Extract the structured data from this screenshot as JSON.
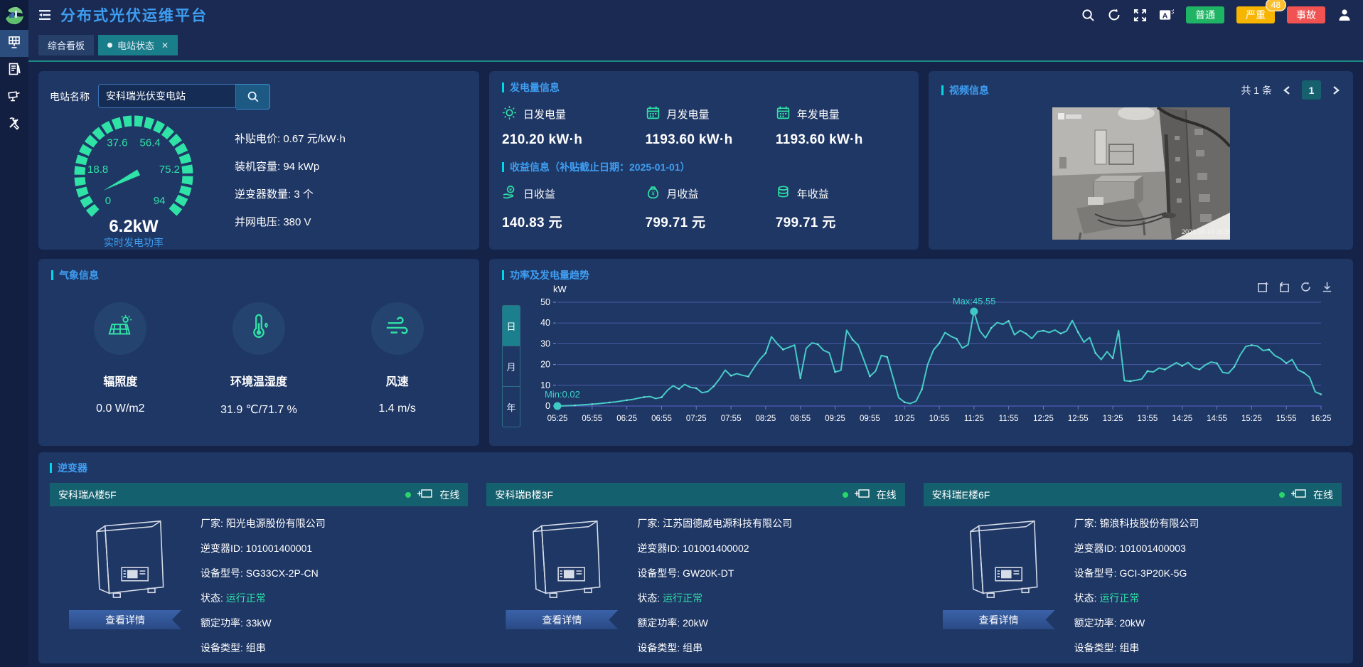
{
  "colors": {
    "accent_blue": "#3f9ef2",
    "accent_cyan": "#00d8e8",
    "green": "#2fe3a6",
    "chart_line": "#45cbc7",
    "teal_tab": "#1a7e8a"
  },
  "header": {
    "title": "分布式光伏运维平台",
    "alarm_buttons": [
      {
        "label": "普通",
        "bg": "#1eb463"
      },
      {
        "label": "严重",
        "bg": "#f7b500",
        "count": "48"
      },
      {
        "label": "事故",
        "bg": "#f15353"
      }
    ]
  },
  "tabs": [
    {
      "label": "综合看板",
      "active": false,
      "closable": false
    },
    {
      "label": "电站状态",
      "active": true,
      "closable": true
    }
  ],
  "sidebar": {
    "items": [
      {
        "icon": "solar-panel",
        "active": true
      },
      {
        "icon": "report",
        "active": false
      },
      {
        "icon": "camera",
        "active": false
      },
      {
        "icon": "tools",
        "active": false
      }
    ]
  },
  "station": {
    "search_label": "电站名称",
    "search_value": "安科瑞光伏变电站",
    "gauge": {
      "value": 6.2,
      "min": 0,
      "max": 94,
      "value_text": "6.2kW",
      "caption": "实时发电功率",
      "tick_labels": [
        "0",
        "18.8",
        "37.6",
        "56.4",
        "75.2",
        "94"
      ]
    },
    "stats": [
      {
        "label": "补贴电价",
        "value": "0.67 元/kW·h"
      },
      {
        "label": "装机容量",
        "value": "94 kWp"
      },
      {
        "label": "逆变器数量",
        "value": "3 个"
      },
      {
        "label": "并网电压",
        "value": "380 V"
      }
    ]
  },
  "generation": {
    "title": "发电量信息",
    "items": [
      {
        "icon": "sun",
        "label": "日发电量",
        "value": "210.20 kW·h"
      },
      {
        "icon": "calendar",
        "label": "月发电量",
        "value": "1193.60 kW·h"
      },
      {
        "icon": "calendar",
        "label": "年发电量",
        "value": "1193.60 kW·h"
      }
    ],
    "income_title": "收益信息（补贴截止日期：2025-01-01）",
    "income_items": [
      {
        "icon": "coin-hand",
        "label": "日收益",
        "value": "140.83 元"
      },
      {
        "icon": "money-bag",
        "label": "月收益",
        "value": "799.71 元"
      },
      {
        "icon": "coins",
        "label": "年收益",
        "value": "799.71 元"
      }
    ]
  },
  "video": {
    "title": "视频信息",
    "total_text": "共 1 条",
    "page": "1",
    "camera_timestamp": "2021-06-24 16:59:10"
  },
  "weather": {
    "title": "气象信息",
    "items": [
      {
        "icon": "irradiance",
        "label": "辐照度",
        "value": "0.0 W/m2"
      },
      {
        "icon": "thermo",
        "label": "环境温湿度",
        "value": "31.9 ℃/71.7 %"
      },
      {
        "icon": "wind",
        "label": "风速",
        "value": "1.4 m/s"
      }
    ]
  },
  "chart": {
    "title": "功率及发电量趋势",
    "tabs": [
      {
        "label": "日",
        "active": true
      },
      {
        "label": "月",
        "active": false
      },
      {
        "label": "年",
        "active": false
      }
    ],
    "max_label": "Max:45.55",
    "min_label": "Min:0.02"
  },
  "chart_data": {
    "type": "line",
    "title": "功率及发电量趋势",
    "ylabel": "kW",
    "ylim": [
      0,
      50
    ],
    "yticks": [
      0,
      10,
      20,
      30,
      40,
      50
    ],
    "x_start": "05:25",
    "x_end": "16:25",
    "x_interval_minutes": 5,
    "x_tick_labels": [
      "05:25",
      "05:55",
      "06:25",
      "06:55",
      "07:25",
      "07:55",
      "08:25",
      "08:55",
      "09:25",
      "09:55",
      "10:25",
      "10:55",
      "11:25",
      "11:55",
      "12:25",
      "12:55",
      "13:25",
      "13:55",
      "14:25",
      "14:55",
      "15:25",
      "15:55",
      "16:25"
    ],
    "series": [
      {
        "name": "功率",
        "values": [
          0.02,
          0.1,
          0.2,
          0.3,
          0.5,
          0.7,
          0.9,
          1.1,
          1.4,
          1.7,
          2.0,
          2.4,
          2.8,
          3.2,
          3.8,
          4.3,
          4.6,
          3.6,
          4.2,
          7.5,
          9.8,
          8.2,
          10.4,
          9.0,
          8.6,
          6.4,
          7.0,
          9.5,
          13.0,
          17.3,
          14.6,
          15.6,
          14.8,
          14.2,
          18.5,
          22.5,
          25.5,
          33.4,
          30.0,
          27.2,
          28.3,
          29.4,
          13.4,
          27.8,
          30.4,
          29.8,
          26.8,
          25.6,
          16.4,
          17.2,
          36.5,
          32.0,
          29.3,
          22.0,
          14.3,
          16.8,
          24.4,
          23.6,
          13.8,
          4.0,
          1.8,
          1.2,
          2.4,
          8.0,
          20.0,
          27.0,
          30.2,
          35.4,
          33.6,
          32.4,
          27.9,
          29.6,
          45.55,
          36.2,
          32.8,
          37.6,
          40.2,
          39.4,
          41.0,
          34.3,
          36.4,
          34.9,
          32.5,
          35.8,
          36.3,
          35.4,
          36.6,
          34.9,
          36.1,
          41.2,
          35.5,
          30.8,
          33.0,
          25.5,
          22.4,
          26.2,
          23.0,
          36.4,
          12.2,
          12.0,
          12.4,
          13.0,
          16.8,
          16.4,
          18.3,
          17.6,
          19.2,
          20.9,
          19.3,
          21.0,
          18.4,
          17.6,
          19.8,
          21.2,
          20.6,
          16.2,
          15.8,
          18.9,
          24.5,
          28.7,
          29.3,
          28.9,
          26.7,
          27.2,
          24.3,
          22.9,
          20.6,
          22.4,
          17.4,
          16.1,
          13.9,
          6.8,
          5.6
        ]
      }
    ],
    "annotations": {
      "max": {
        "x": "11:25",
        "value": 45.55
      },
      "min": {
        "x": "05:25",
        "value": 0.02
      }
    },
    "grid": true,
    "legend": false
  },
  "inverters": {
    "title": "逆变器",
    "detail_button": "查看详情",
    "cards": [
      {
        "name": "安科瑞A楼5F",
        "status": "在线",
        "rows": [
          {
            "label": "厂家",
            "value": "阳光电源股份有限公司"
          },
          {
            "label": "逆变器ID",
            "value": "101001400001"
          },
          {
            "label": "设备型号",
            "value": "SG33CX-2P-CN"
          },
          {
            "label": "状态",
            "value": "运行正常",
            "green": true
          },
          {
            "label": "额定功率",
            "value": "33kW"
          },
          {
            "label": "设备类型",
            "value": "组串"
          }
        ]
      },
      {
        "name": "安科瑞B楼3F",
        "status": "在线",
        "rows": [
          {
            "label": "厂家",
            "value": "江苏固德威电源科技有限公司"
          },
          {
            "label": "逆变器ID",
            "value": "101001400002"
          },
          {
            "label": "设备型号",
            "value": "GW20K-DT"
          },
          {
            "label": "状态",
            "value": "运行正常",
            "green": true
          },
          {
            "label": "额定功率",
            "value": "20kW"
          },
          {
            "label": "设备类型",
            "value": "组串"
          }
        ]
      },
      {
        "name": "安科瑞E楼6F",
        "status": "在线",
        "rows": [
          {
            "label": "厂家",
            "value": "锦浪科技股份有限公司"
          },
          {
            "label": "逆变器ID",
            "value": "101001400003"
          },
          {
            "label": "设备型号",
            "value": "GCI-3P20K-5G"
          },
          {
            "label": "状态",
            "value": "运行正常",
            "green": true
          },
          {
            "label": "额定功率",
            "value": "20kW"
          },
          {
            "label": "设备类型",
            "value": "组串"
          }
        ]
      }
    ]
  }
}
